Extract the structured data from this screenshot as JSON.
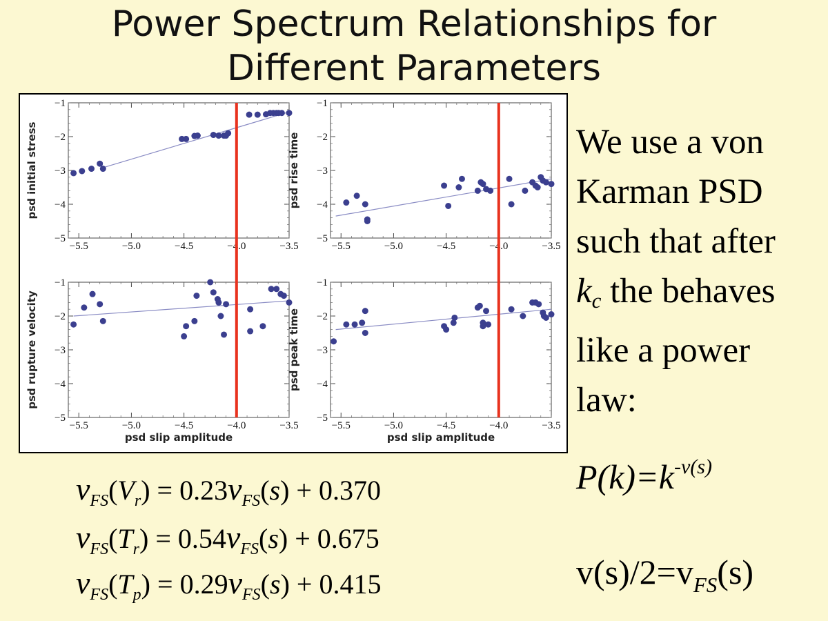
{
  "title": {
    "line1": "Power Spectrum Relationships for",
    "line2": "Different Parameters"
  },
  "side_text": {
    "line1": "We use a von",
    "line2": "Karman PSD",
    "line3": "such that after",
    "line4_var": "k",
    "line4_sub": "c",
    "line4_rest": " the behaves",
    "line5": "like a power",
    "line6": "law:"
  },
  "formula_pk": {
    "base": "P(k)=k",
    "exp": "-v(s)"
  },
  "formula_vs": {
    "left": "v(s)/2=v",
    "sub": "FS",
    "right": "(s)"
  },
  "equations": [
    {
      "lhs_var": "v",
      "lhs_sub": "FS",
      "arg": "V",
      "arg_sub": "r",
      "coef": "0.23",
      "rhs_var": "v",
      "rhs_sub": "FS",
      "rhs_arg": "s",
      "const": "0.370"
    },
    {
      "lhs_var": "v",
      "lhs_sub": "FS",
      "arg": "T",
      "arg_sub": "r",
      "coef": "0.54",
      "rhs_var": "v",
      "rhs_sub": "FS",
      "rhs_arg": "s",
      "const": "0.675"
    },
    {
      "lhs_var": "v",
      "lhs_sub": "FS",
      "arg": "T",
      "arg_sub": "p",
      "coef": "0.29",
      "rhs_var": "v",
      "rhs_sub": "FS",
      "rhs_arg": "s",
      "const": "0.415"
    }
  ],
  "colors": {
    "background": "#fcf8d2",
    "points": "#3b3f8f",
    "fit_line": "#8a8cc4",
    "threshold": "#e8321e"
  },
  "chart_data": [
    {
      "type": "scatter",
      "ylabel": "psd initial stress",
      "xlabel": "",
      "xlim": [
        -5.6,
        -3.5
      ],
      "ylim": [
        -5,
        -1
      ],
      "xticks": [
        "-5.5",
        "-5.0",
        "-4.5",
        "-4.0",
        "-3.5"
      ],
      "yticks": [
        "-1",
        "-2",
        "-3",
        "-4",
        "-5"
      ],
      "threshold_x": -4.0,
      "fit": [
        [
          -5.25,
          -2.9
        ],
        [
          -3.5,
          -1.27
        ]
      ],
      "points": [
        [
          -5.55,
          -3.08
        ],
        [
          -5.47,
          -3.02
        ],
        [
          -5.38,
          -2.95
        ],
        [
          -5.3,
          -2.8
        ],
        [
          -5.27,
          -2.95
        ],
        [
          -4.52,
          -2.07
        ],
        [
          -4.48,
          -2.07
        ],
        [
          -4.4,
          -1.98
        ],
        [
          -4.37,
          -1.97
        ],
        [
          -4.22,
          -1.95
        ],
        [
          -4.17,
          -1.97
        ],
        [
          -4.12,
          -1.97
        ],
        [
          -4.1,
          -1.97
        ],
        [
          -4.08,
          -1.9
        ],
        [
          -3.88,
          -1.35
        ],
        [
          -3.8,
          -1.35
        ],
        [
          -3.72,
          -1.34
        ],
        [
          -3.68,
          -1.3
        ],
        [
          -3.65,
          -1.3
        ],
        [
          -3.62,
          -1.3
        ],
        [
          -3.6,
          -1.3
        ],
        [
          -3.57,
          -1.3
        ],
        [
          -3.5,
          -1.3
        ]
      ]
    },
    {
      "type": "scatter",
      "ylabel": "psd rise time",
      "xlabel": "",
      "xlim": [
        -5.6,
        -3.5
      ],
      "ylim": [
        -5,
        -1
      ],
      "xticks": [
        "-5.5",
        "-5.0",
        "-4.5",
        "-4.0",
        "-3.5"
      ],
      "yticks": [
        "-1",
        "-2",
        "-3",
        "-4",
        "-5"
      ],
      "threshold_x": -4.0,
      "fit": [
        [
          -5.55,
          -4.35
        ],
        [
          -3.5,
          -3.25
        ]
      ],
      "points": [
        [
          -5.45,
          -3.95
        ],
        [
          -5.35,
          -3.75
        ],
        [
          -5.27,
          -4.0
        ],
        [
          -5.25,
          -4.45
        ],
        [
          -5.25,
          -4.5
        ],
        [
          -4.52,
          -3.45
        ],
        [
          -4.48,
          -4.05
        ],
        [
          -4.38,
          -3.5
        ],
        [
          -4.35,
          -3.25
        ],
        [
          -4.2,
          -3.6
        ],
        [
          -4.17,
          -3.35
        ],
        [
          -4.15,
          -3.4
        ],
        [
          -4.12,
          -3.55
        ],
        [
          -4.08,
          -3.6
        ],
        [
          -3.9,
          -3.25
        ],
        [
          -3.88,
          -4.0
        ],
        [
          -3.75,
          -3.6
        ],
        [
          -3.68,
          -3.35
        ],
        [
          -3.65,
          -3.45
        ],
        [
          -3.63,
          -3.5
        ],
        [
          -3.6,
          -3.2
        ],
        [
          -3.58,
          -3.3
        ],
        [
          -3.55,
          -3.35
        ],
        [
          -3.5,
          -3.4
        ]
      ]
    },
    {
      "type": "scatter",
      "ylabel": "psd rupture velocity",
      "xlabel": "psd slip amplitude",
      "xlim": [
        -5.6,
        -3.5
      ],
      "ylim": [
        -5,
        -1
      ],
      "xticks": [
        "-5.5",
        "-5.0",
        "-4.5",
        "-4.0",
        "-3.5"
      ],
      "yticks": [
        "-1",
        "-2",
        "-3",
        "-4",
        "-5"
      ],
      "threshold_x": -4.0,
      "fit": [
        [
          -5.55,
          -2.0
        ],
        [
          -3.5,
          -1.55
        ]
      ],
      "points": [
        [
          -5.55,
          -2.25
        ],
        [
          -5.45,
          -1.75
        ],
        [
          -5.37,
          -1.35
        ],
        [
          -5.3,
          -1.65
        ],
        [
          -5.27,
          -2.15
        ],
        [
          -4.5,
          -2.6
        ],
        [
          -4.48,
          -2.3
        ],
        [
          -4.4,
          -2.15
        ],
        [
          -4.38,
          -1.4
        ],
        [
          -4.25,
          -1.0
        ],
        [
          -4.22,
          -1.3
        ],
        [
          -4.18,
          -1.5
        ],
        [
          -4.17,
          -1.6
        ],
        [
          -4.15,
          -2.0
        ],
        [
          -4.12,
          -2.55
        ],
        [
          -4.1,
          -1.65
        ],
        [
          -3.87,
          -1.8
        ],
        [
          -3.87,
          -2.45
        ],
        [
          -3.75,
          -2.3
        ],
        [
          -3.67,
          -1.2
        ],
        [
          -3.62,
          -1.2
        ],
        [
          -3.58,
          -1.35
        ],
        [
          -3.55,
          -1.4
        ],
        [
          -3.5,
          -1.6
        ]
      ]
    },
    {
      "type": "scatter",
      "ylabel": "psd peak time",
      "xlabel": "psd slip amplitude",
      "xlim": [
        -5.6,
        -3.5
      ],
      "ylim": [
        -5,
        -1
      ],
      "xticks": [
        "-5.5",
        "-5.0",
        "-4.5",
        "-4.0",
        "-3.5"
      ],
      "yticks": [
        "-1",
        "-2",
        "-3",
        "-4",
        "-5"
      ],
      "threshold_x": -4.0,
      "fit": [
        [
          -5.55,
          -2.4
        ],
        [
          -3.5,
          -1.8
        ]
      ],
      "points": [
        [
          -5.57,
          -2.75
        ],
        [
          -5.45,
          -2.25
        ],
        [
          -5.37,
          -2.25
        ],
        [
          -5.3,
          -2.2
        ],
        [
          -5.27,
          -2.5
        ],
        [
          -5.27,
          -1.85
        ],
        [
          -4.52,
          -2.3
        ],
        [
          -4.5,
          -2.4
        ],
        [
          -4.43,
          -2.2
        ],
        [
          -4.42,
          -2.05
        ],
        [
          -4.2,
          -1.75
        ],
        [
          -4.18,
          -1.7
        ],
        [
          -4.15,
          -2.2
        ],
        [
          -4.15,
          -2.3
        ],
        [
          -4.12,
          -1.85
        ],
        [
          -4.1,
          -2.25
        ],
        [
          -3.88,
          -1.8
        ],
        [
          -3.77,
          -2.0
        ],
        [
          -3.68,
          -1.6
        ],
        [
          -3.65,
          -1.6
        ],
        [
          -3.62,
          -1.65
        ],
        [
          -3.58,
          -1.9
        ],
        [
          -3.57,
          -2.0
        ],
        [
          -3.55,
          -2.05
        ],
        [
          -3.5,
          -1.95
        ]
      ]
    }
  ]
}
